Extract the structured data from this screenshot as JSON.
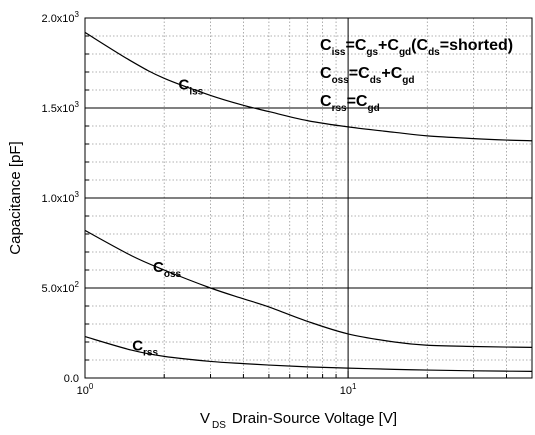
{
  "chart_data": {
    "type": "line",
    "xlabel": {
      "main": "V",
      "sub": "DS",
      "rest": "Drain-Source Voltage [V]"
    },
    "ylabel": "Capacitance  [pF]",
    "x_scale": "log",
    "xlim": [
      1,
      50
    ],
    "ylim": [
      0,
      2000
    ],
    "grid": true,
    "x_ticks": [
      {
        "value": 1,
        "base": "10",
        "exp": "0"
      },
      {
        "value": 10,
        "base": "10",
        "exp": "1"
      }
    ],
    "y_ticks": [
      {
        "value": 0,
        "mant": "0.0",
        "exp": ""
      },
      {
        "value": 500,
        "mant": "5.0x10",
        "exp": "2"
      },
      {
        "value": 1000,
        "mant": "1.0x10",
        "exp": "3"
      },
      {
        "value": 1500,
        "mant": "1.5x10",
        "exp": "3"
      },
      {
        "value": 2000,
        "mant": "2.0x10",
        "exp": "3"
      }
    ],
    "series": [
      {
        "name": "Ciss",
        "label": {
          "main": "C",
          "sub": "iss"
        },
        "x": [
          1,
          1.5,
          2,
          3,
          4,
          5,
          7,
          10,
          15,
          20,
          30,
          40,
          50
        ],
        "y": [
          1920,
          1760,
          1665,
          1570,
          1515,
          1480,
          1430,
          1395,
          1365,
          1345,
          1330,
          1322,
          1318
        ]
      },
      {
        "name": "Coss",
        "label": {
          "main": "C",
          "sub": "oss"
        },
        "x": [
          1,
          1.5,
          2,
          3,
          4,
          5,
          7,
          10,
          15,
          20,
          30,
          40,
          50
        ],
        "y": [
          820,
          680,
          600,
          500,
          440,
          395,
          315,
          245,
          200,
          182,
          175,
          172,
          170
        ]
      },
      {
        "name": "Crss",
        "label": {
          "main": "C",
          "sub": "rss"
        },
        "x": [
          1,
          1.5,
          2,
          3,
          4,
          5,
          7,
          10,
          15,
          20,
          30,
          40,
          50
        ],
        "y": [
          230,
          155,
          120,
          92,
          80,
          72,
          62,
          55,
          48,
          44,
          40,
          38,
          37
        ]
      }
    ],
    "annotations": [
      [
        {
          "t": "C",
          "s": false
        },
        {
          "t": "iss",
          "s": true
        },
        {
          "t": "=C",
          "s": false
        },
        {
          "t": "gs",
          "s": true
        },
        {
          "t": "+C",
          "s": false
        },
        {
          "t": "gd",
          "s": true
        },
        {
          "t": "(C",
          "s": false
        },
        {
          "t": "ds",
          "s": true
        },
        {
          "t": "=shorted)",
          "s": false
        }
      ],
      [
        {
          "t": "C",
          "s": false
        },
        {
          "t": "oss",
          "s": true
        },
        {
          "t": "=C",
          "s": false
        },
        {
          "t": "ds",
          "s": true
        },
        {
          "t": "+C",
          "s": false
        },
        {
          "t": "gd",
          "s": true
        }
      ],
      [
        {
          "t": "C",
          "s": false
        },
        {
          "t": "rss",
          "s": true
        },
        {
          "t": "=C",
          "s": false
        },
        {
          "t": "gd",
          "s": true
        }
      ]
    ]
  }
}
